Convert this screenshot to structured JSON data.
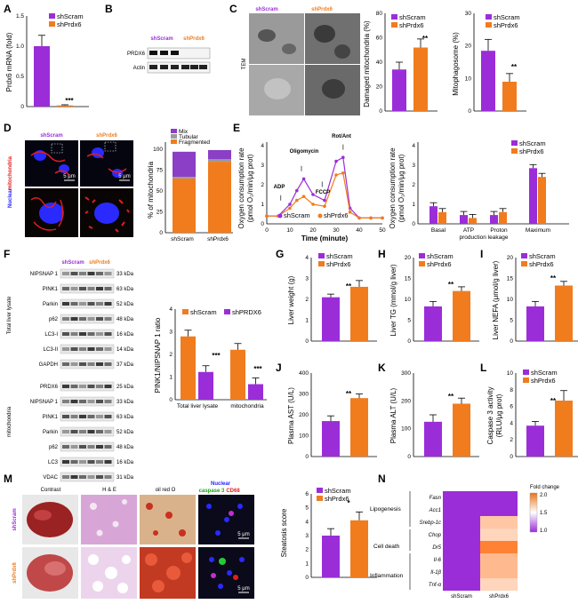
{
  "colors": {
    "scram": "#9b2dd9",
    "prdx6": "#f07c1e",
    "mix": "#8a3fc6",
    "tubular": "#9a9a9a",
    "fragmented": "#f07c1e",
    "nuclear": "#2323ff",
    "mito": "#e21e1e"
  },
  "panels": {
    "A": "A",
    "B": "B",
    "C": "C",
    "D": "D",
    "E": "E",
    "F": "F",
    "G": "G",
    "H": "H",
    "I": "I",
    "J": "J",
    "K": "K",
    "L": "L",
    "M": "M",
    "N": "N"
  },
  "legend": {
    "scram": "shScram",
    "prdx6": "shPrdx6",
    "PRDX6": "shPRDX6"
  },
  "panelA": {
    "ylabel": "Prdx6 mRNA (fold)",
    "yticks": [
      "0",
      "0.5",
      "1.0",
      "1.5"
    ],
    "sig": "***"
  },
  "panelB": {
    "head_scram": "shScram",
    "head_prdx6": "shPrdx6",
    "rows": [
      "PRDX6",
      "Actin"
    ]
  },
  "panelC": {
    "tem": "TEM",
    "head_scram": "shScram",
    "head_prdx6": "shPrdx6",
    "chart1_ylabel": "Damaged mitochondria (%)",
    "chart1_yticks": [
      "0",
      "20",
      "40",
      "60",
      "80"
    ],
    "chart2_ylabel": "Mitophagosome (%)",
    "chart2_yticks": [
      "0",
      "10",
      "20",
      "30"
    ],
    "sig": "**"
  },
  "panelD": {
    "head_scram": "shScram",
    "head_prdx6": "shPrdx6",
    "scale1": "5 μm",
    "scale2": "5 μm",
    "nuclear": "Nuclear",
    "mito": "mitochondria",
    "ylabel": "% of mitochondria",
    "yticks": [
      "0",
      "25",
      "50",
      "75",
      "100"
    ],
    "legend": [
      "Mix",
      "Tubular",
      "Fragmented"
    ],
    "xcats": [
      "shScram",
      "shPrdx6"
    ]
  },
  "panelE": {
    "ylabel1": "Oxygen consumption rate",
    "ylabel2": "(pmol O₂/min/μg prot)",
    "xlabel": "Time (minute)",
    "xticks": [
      "0",
      "10",
      "20",
      "30",
      "40",
      "50"
    ],
    "yticks": [
      "0",
      "1",
      "2",
      "3",
      "4"
    ],
    "annot": [
      "Oligomycin",
      "Rot/Ant",
      "ADP",
      "FCCP"
    ],
    "bar_cats": [
      "Basal",
      "ATP",
      "Proton",
      "Maximum"
    ],
    "bar_sub": "production leakage"
  },
  "panelF": {
    "head_scram": "shScram",
    "head_prdx6": "shPrdx6",
    "group1": "Total liver lysate",
    "group2": "mitochondria",
    "rows1": [
      [
        "NIPSNAP 1",
        "33 kDa"
      ],
      [
        "PINK1",
        "63 kDa"
      ],
      [
        "Parkin",
        "52 kDa"
      ],
      [
        "p62",
        "48 kDa"
      ],
      [
        "LC3-I",
        "16 kDa"
      ],
      [
        "LC3-II",
        "14 kDa"
      ],
      [
        "GAPDH",
        "37 kDa"
      ]
    ],
    "rows2": [
      [
        "PRDX6",
        "25 kDa"
      ],
      [
        "NIPSNAP 1",
        "33 kDa"
      ],
      [
        "PINK1",
        "63 kDa"
      ],
      [
        "Parkin",
        "52 kDa"
      ],
      [
        "p62",
        "48 kDa"
      ],
      [
        "LC3",
        "16 kDa"
      ],
      [
        "VDAC",
        "31 kDa"
      ]
    ],
    "ylabel": "PINK1/NIPSNAP 1 ratio",
    "yticks": [
      "0",
      "1",
      "2",
      "3",
      "4"
    ],
    "xcats": [
      "Total liver lysate",
      "mitochondria"
    ],
    "sig": "***"
  },
  "panelG": {
    "ylabel": "Liver weight (g)",
    "yticks": [
      "0",
      "1",
      "2",
      "3",
      "4"
    ],
    "sig": "**"
  },
  "panelH": {
    "ylabel": "Liver TG (mmol/g liver)",
    "yticks": [
      "0",
      "5",
      "10",
      "15",
      "20"
    ],
    "sig": "**"
  },
  "panelI": {
    "ylabel": "Liver NEFA (μmol/g liver)",
    "yticks": [
      "0",
      "5",
      "10",
      "15",
      "20"
    ],
    "sig": "**"
  },
  "panelJ": {
    "ylabel": "Plasma AST (U/L)",
    "yticks": [
      "0",
      "100",
      "200",
      "300",
      "400"
    ],
    "sig": "**"
  },
  "panelK": {
    "ylabel": "Plasma ALT (U/L)",
    "yticks": [
      "0",
      "100",
      "200",
      "300"
    ],
    "sig": "**"
  },
  "panelL": {
    "ylabel1": "Caspase 3 activity",
    "ylabel2": "(RLU/μg prot)",
    "yticks": [
      "0",
      "2",
      "4",
      "6",
      "8",
      "10"
    ],
    "sig": "**"
  },
  "panelM": {
    "cols": [
      "Contrast",
      "H & E",
      "oil red O"
    ],
    "stain_nuclear": "Nuclear",
    "stain_casp": "caspase 3",
    "stain_cd68": "CD68",
    "row1": "shScram",
    "row2": "shPrdx6",
    "scale": "5 μm",
    "ylabel": "Steatosis score",
    "yticks": [
      "0",
      "1",
      "2",
      "3",
      "4",
      "5",
      "6"
    ],
    "sig": "*"
  },
  "panelN": {
    "groups": [
      "Lipogenesis",
      "Cell death",
      "Inflammation"
    ],
    "genes": [
      "Fasn",
      "Acc1",
      "Srebp-1c",
      "Chop",
      "Dr5",
      "Il-6",
      "Il-1β",
      "Tnf-α"
    ],
    "xcats": [
      "shScram",
      "shPrdx6"
    ],
    "cbar_title": "Fold change",
    "cbar_ticks": [
      "2.0",
      "1.5",
      "1.0"
    ]
  },
  "chart_data": [
    {
      "panel": "A",
      "type": "bar",
      "categories": [
        "shScram",
        "shPrdx6"
      ],
      "values": [
        1.0,
        0.02
      ],
      "errors": [
        0.18,
        0.01
      ],
      "ylim": [
        0,
        1.5
      ],
      "ylabel": "Prdx6 mRNA (fold)"
    },
    {
      "panel": "C1",
      "type": "bar",
      "categories": [
        "shScram",
        "shPrdx6"
      ],
      "values": [
        34,
        52
      ],
      "errors": [
        6,
        7
      ],
      "ylim": [
        0,
        80
      ],
      "ylabel": "Damaged mitochondria (%)"
    },
    {
      "panel": "C2",
      "type": "bar",
      "categories": [
        "shScram",
        "shPrdx6"
      ],
      "values": [
        18.5,
        9
      ],
      "errors": [
        3.5,
        2.5
      ],
      "ylim": [
        0,
        30
      ],
      "ylabel": "Mitophagosome (%)"
    },
    {
      "panel": "D",
      "type": "bar",
      "categories": [
        "shScram",
        "shPrdx6"
      ],
      "series": [
        {
          "name": "Fragmented",
          "values": [
            65,
            85
          ]
        },
        {
          "name": "Tubular",
          "values": [
            2,
            3
          ]
        },
        {
          "name": "Mix",
          "values": [
            30,
            11
          ]
        }
      ],
      "ylim": [
        0,
        100
      ],
      "ylabel": "% of mitochondria"
    },
    {
      "panel": "E1",
      "type": "line",
      "x": [
        0,
        5,
        10,
        13,
        16,
        20,
        25,
        30,
        33,
        36,
        40,
        45,
        50
      ],
      "series": [
        {
          "name": "shScram",
          "values": [
            0.4,
            0.4,
            1.0,
            1.7,
            2.3,
            1.5,
            1.2,
            3.2,
            3.4,
            0.8,
            0.3,
            0.3,
            0.3
          ]
        },
        {
          "name": "shPrdx6",
          "values": [
            0.4,
            0.4,
            0.8,
            1.2,
            1.4,
            1.0,
            0.9,
            2.5,
            2.6,
            0.6,
            0.3,
            0.3,
            0.3
          ]
        }
      ],
      "ylim": [
        0,
        4
      ],
      "xlim": [
        0,
        50
      ],
      "xlabel": "Time (minute)"
    },
    {
      "panel": "E2",
      "type": "bar",
      "categories": [
        "Basal",
        "ATP",
        "Proton",
        "Maximum"
      ],
      "series": [
        {
          "name": "shScram",
          "values": [
            0.9,
            0.45,
            0.45,
            2.85
          ]
        },
        {
          "name": "shPrdx6",
          "values": [
            0.6,
            0.3,
            0.6,
            2.4
          ]
        }
      ],
      "ylim": [
        0,
        4
      ]
    },
    {
      "panel": "F",
      "type": "bar",
      "categories": [
        "Total liver lysate",
        "mitochondria"
      ],
      "series": [
        {
          "name": "shScram",
          "values": [
            2.85,
            2.25
          ]
        },
        {
          "name": "shPRDX6",
          "values": [
            1.25,
            0.7
          ]
        }
      ],
      "ylim": [
        0,
        4
      ],
      "ylabel": "PINK1/NIPSNAP 1 ratio"
    },
    {
      "panel": "G",
      "type": "bar",
      "categories": [
        "shScram",
        "shPrdx6"
      ],
      "values": [
        2.1,
        2.6
      ],
      "errors": [
        0.15,
        0.3
      ],
      "ylim": [
        0,
        4
      ],
      "ylabel": "Liver weight (g)"
    },
    {
      "panel": "H",
      "type": "bar",
      "categories": [
        "shScram",
        "shPrdx6"
      ],
      "values": [
        8.3,
        12
      ],
      "errors": [
        1.2,
        1.0
      ],
      "ylim": [
        0,
        20
      ],
      "ylabel": "Liver TG (mmol/g liver)"
    },
    {
      "panel": "I",
      "type": "bar",
      "categories": [
        "shScram",
        "shPrdx6"
      ],
      "values": [
        8.3,
        13.3
      ],
      "errors": [
        1.2,
        1.0
      ],
      "ylim": [
        0,
        20
      ],
      "ylabel": "Liver NEFA (μmol/g liver)"
    },
    {
      "panel": "J",
      "type": "bar",
      "categories": [
        "shScram",
        "shPrdx6"
      ],
      "values": [
        170,
        280
      ],
      "errors": [
        25,
        20
      ],
      "ylim": [
        0,
        400
      ],
      "ylabel": "Plasma AST (U/L)"
    },
    {
      "panel": "K",
      "type": "bar",
      "categories": [
        "shScram",
        "shPrdx6"
      ],
      "values": [
        125,
        190
      ],
      "errors": [
        25,
        20
      ],
      "ylim": [
        0,
        300
      ],
      "ylabel": "Plasma ALT (U/L)"
    },
    {
      "panel": "L",
      "type": "bar",
      "categories": [
        "shScram",
        "shPrdx6"
      ],
      "values": [
        3.7,
        6.7
      ],
      "errors": [
        0.5,
        1.2
      ],
      "ylim": [
        0,
        10
      ],
      "ylabel": "Caspase 3 activity (RLU/μg prot)"
    },
    {
      "panel": "M",
      "type": "bar",
      "categories": [
        "shScram",
        "shPrdx6"
      ],
      "values": [
        3.0,
        4.1
      ],
      "errors": [
        0.5,
        0.6
      ],
      "ylim": [
        0,
        6
      ],
      "ylabel": "Steatosis score"
    },
    {
      "panel": "N",
      "type": "heatmap",
      "rows": [
        "Fasn",
        "Acc1",
        "Srebp-1c",
        "Chop",
        "Dr5",
        "Il-6",
        "Il-1β",
        "Tnf-α"
      ],
      "columns": [
        "shScram",
        "shPrdx6"
      ],
      "values": [
        [
          1,
          1.0
        ],
        [
          1,
          1.0
        ],
        [
          1,
          1.4
        ],
        [
          1,
          1.3
        ],
        [
          1,
          1.9
        ],
        [
          1,
          1.5
        ],
        [
          1,
          1.5
        ],
        [
          1,
          1.3
        ]
      ],
      "range": [
        1.0,
        2.0
      ]
    }
  ]
}
